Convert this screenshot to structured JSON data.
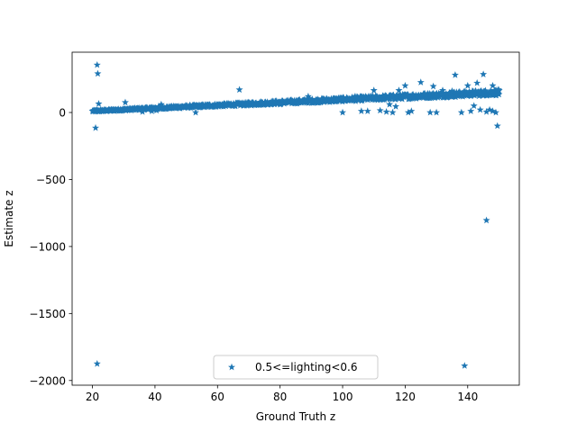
{
  "chart_data": {
    "type": "scatter",
    "xlabel": "Ground Truth z",
    "ylabel": "Estimate z",
    "xlim": [
      13.5,
      156.5
    ],
    "ylim": [
      -2035,
      450
    ],
    "xticks": [
      20,
      40,
      60,
      80,
      100,
      120,
      140
    ],
    "yticks": [
      -2000,
      -1500,
      -1000,
      -500,
      0
    ],
    "marker": "star",
    "color": "#1f77b4",
    "legend_position": "lower center",
    "series": [
      {
        "name": "0.5<=lighting<0.6",
        "trend": {
          "x_start": 20,
          "x_end": 150,
          "y_start": 10,
          "y_end": 150
        },
        "outliers": [
          [
            21,
            -115
          ],
          [
            21.5,
            355
          ],
          [
            21.7,
            290
          ],
          [
            22,
            65
          ],
          [
            21.5,
            -1875
          ],
          [
            30.5,
            75
          ],
          [
            34,
            20
          ],
          [
            36,
            5
          ],
          [
            39,
            10
          ],
          [
            40.5,
            15
          ],
          [
            42,
            60
          ],
          [
            53,
            0
          ],
          [
            67,
            170
          ],
          [
            80,
            60
          ],
          [
            89,
            120
          ],
          [
            100,
            0
          ],
          [
            104,
            120
          ],
          [
            106,
            10
          ],
          [
            108,
            10
          ],
          [
            110,
            165
          ],
          [
            112,
            15
          ],
          [
            114,
            5
          ],
          [
            115,
            60
          ],
          [
            116,
            0
          ],
          [
            117,
            45
          ],
          [
            118,
            165
          ],
          [
            120,
            200
          ],
          [
            121,
            0
          ],
          [
            122,
            10
          ],
          [
            125,
            225
          ],
          [
            126,
            140
          ],
          [
            128,
            0
          ],
          [
            129,
            195
          ],
          [
            130,
            0
          ],
          [
            132,
            165
          ],
          [
            135,
            160
          ],
          [
            136,
            280
          ],
          [
            138,
            0
          ],
          [
            139,
            -1890
          ],
          [
            140,
            200
          ],
          [
            141,
            10
          ],
          [
            142,
            50
          ],
          [
            143,
            220
          ],
          [
            144,
            20
          ],
          [
            145,
            285
          ],
          [
            146,
            -805
          ],
          [
            146,
            5
          ],
          [
            147,
            20
          ],
          [
            148,
            10
          ],
          [
            148,
            200
          ],
          [
            149,
            0
          ],
          [
            149.5,
            -100
          ],
          [
            150,
            135
          ],
          [
            150,
            165
          ]
        ]
      }
    ]
  }
}
